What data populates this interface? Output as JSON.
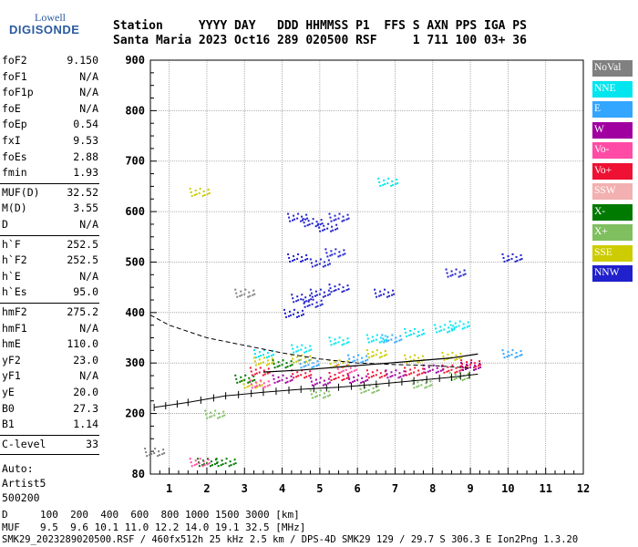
{
  "logo": {
    "top": "Lowell",
    "main": "DIGISONDE"
  },
  "header": {
    "row1": "Station     YYYY DAY   DDD HHMMSS P1  FFS S AXN PPS IGA PS",
    "row2": "Santa Maria 2023 Oct16 289 020500 RSF     1 711 100 03+ 36"
  },
  "params": {
    "group1": [
      {
        "name": "foF2",
        "value": "9.150"
      },
      {
        "name": "foF1",
        "value": "N/A"
      },
      {
        "name": "foF1p",
        "value": "N/A"
      },
      {
        "name": "foE",
        "value": "N/A"
      },
      {
        "name": "foEp",
        "value": "0.54"
      },
      {
        "name": "fxI",
        "value": "9.53"
      },
      {
        "name": "foEs",
        "value": "2.88"
      },
      {
        "name": "fmin",
        "value": "1.93"
      }
    ],
    "group2": [
      {
        "name": "MUF(D)",
        "value": "32.52"
      },
      {
        "name": "M(D)",
        "value": "3.55"
      },
      {
        "name": "D",
        "value": "N/A"
      }
    ],
    "group3": [
      {
        "name": "h`F",
        "value": "252.5"
      },
      {
        "name": "h`F2",
        "value": "252.5"
      },
      {
        "name": "h`E",
        "value": "N/A"
      },
      {
        "name": "h`Es",
        "value": "95.0"
      }
    ],
    "group4": [
      {
        "name": "hmF2",
        "value": "275.2"
      },
      {
        "name": "hmF1",
        "value": "N/A"
      },
      {
        "name": "hmE",
        "value": "110.0"
      },
      {
        "name": "yF2",
        "value": "23.0"
      },
      {
        "name": "yF1",
        "value": "N/A"
      },
      {
        "name": "yE",
        "value": "20.0"
      },
      {
        "name": "B0",
        "value": "27.3"
      },
      {
        "name": "B1",
        "value": "1.14"
      }
    ],
    "group5": [
      {
        "name": "C-level",
        "value": "33"
      }
    ],
    "auto": [
      "Auto:",
      "Artist5",
      "500200"
    ]
  },
  "legend": [
    {
      "label": "NoVal",
      "color": "#808080"
    },
    {
      "label": "NNE",
      "color": "#00e5ee"
    },
    {
      "label": "E",
      "color": "#33a6ff"
    },
    {
      "label": "W",
      "color": "#a000a0"
    },
    {
      "label": "Vo-",
      "color": "#ff4ba5"
    },
    {
      "label": "Vo+",
      "color": "#ee1133"
    },
    {
      "label": "SSW",
      "color": "#f2b0b0"
    },
    {
      "label": "X-",
      "color": "#007a00"
    },
    {
      "label": "X+",
      "color": "#7fbf5f"
    },
    {
      "label": "SSE",
      "color": "#cccc00"
    },
    {
      "label": "NNW",
      "color": "#2020cc"
    }
  ],
  "chart_data": {
    "type": "scatter",
    "title": "",
    "xlabel": "",
    "ylabel": "",
    "xlim": [
      0.5,
      12
    ],
    "ylim": [
      80,
      900
    ],
    "x_ticks": [
      "1",
      "2",
      "3",
      "4",
      "5",
      "6",
      "7",
      "8",
      "9",
      "10",
      "11",
      "12"
    ],
    "y_ticks": [
      "80",
      "200",
      "300",
      "400",
      "500",
      "600",
      "700",
      "800",
      "900"
    ],
    "grid": true,
    "series": [
      {
        "color": "#2020cc",
        "points": [
          [
            4.4,
            590
          ],
          [
            4.8,
            580
          ],
          [
            5.2,
            570
          ],
          [
            5.5,
            590
          ],
          [
            4.4,
            510
          ],
          [
            5.0,
            500
          ],
          [
            5.4,
            520
          ],
          [
            4.5,
            430
          ],
          [
            5.0,
            440
          ],
          [
            5.5,
            450
          ],
          [
            4.8,
            420
          ],
          [
            6.7,
            440
          ],
          [
            10.1,
            510
          ],
          [
            8.6,
            480
          ],
          [
            4.3,
            400
          ]
        ]
      },
      {
        "color": "#00e5ee",
        "points": [
          [
            3.5,
            320
          ],
          [
            4.5,
            330
          ],
          [
            5.5,
            345
          ],
          [
            6.5,
            350
          ],
          [
            7.5,
            362
          ],
          [
            8.3,
            370
          ],
          [
            8.7,
            377
          ],
          [
            6.8,
            660
          ]
        ]
      },
      {
        "color": "#cccc00",
        "points": [
          [
            3.5,
            305
          ],
          [
            4.5,
            310
          ],
          [
            5.5,
            300
          ],
          [
            6.5,
            320
          ],
          [
            7.5,
            310
          ],
          [
            8.5,
            315
          ],
          [
            1.8,
            640
          ],
          [
            3.2,
            260
          ]
        ]
      },
      {
        "color": "#ee1133",
        "points": [
          [
            3.4,
            285
          ],
          [
            4.5,
            280
          ],
          [
            5.5,
            275
          ],
          [
            6.5,
            280
          ],
          [
            7.5,
            285
          ],
          [
            8.5,
            290
          ],
          [
            9.0,
            300
          ]
        ]
      },
      {
        "color": "#a000a0",
        "points": [
          [
            4.0,
            270
          ],
          [
            5.0,
            265
          ],
          [
            6.0,
            270
          ],
          [
            7.0,
            280
          ],
          [
            8.0,
            290
          ],
          [
            9.0,
            295
          ]
        ]
      },
      {
        "color": "#7fbf5f",
        "points": [
          [
            2.2,
            200
          ],
          [
            5.0,
            240
          ],
          [
            6.3,
            250
          ],
          [
            7.7,
            260
          ],
          [
            8.7,
            275
          ]
        ]
      },
      {
        "color": "#007a00",
        "points": [
          [
            2.0,
            105
          ],
          [
            2.5,
            105
          ],
          [
            3.0,
            270
          ],
          [
            4.0,
            300
          ]
        ]
      },
      {
        "color": "#33a6ff",
        "points": [
          [
            4.7,
            300
          ],
          [
            6.0,
            310
          ],
          [
            6.9,
            350
          ],
          [
            10.1,
            320
          ]
        ]
      },
      {
        "color": "#ff4ba5",
        "points": [
          [
            1.8,
            105
          ],
          [
            3.4,
            260
          ],
          [
            5.7,
            290
          ]
        ]
      },
      {
        "color": "#808080",
        "points": [
          [
            0.6,
            125
          ],
          [
            3.0,
            440
          ]
        ]
      }
    ],
    "trace_x_mode": [
      [
        0.6,
        212
      ],
      [
        1.5,
        222
      ],
      [
        2.5,
        235
      ],
      [
        3.5,
        242
      ],
      [
        4.5,
        248
      ],
      [
        5.5,
        252
      ],
      [
        6.5,
        258
      ],
      [
        7.5,
        265
      ],
      [
        8.5,
        272
      ],
      [
        9.2,
        278
      ]
    ],
    "trace_o_mode": [
      [
        3.5,
        282
      ],
      [
        4.5,
        286
      ],
      [
        5.5,
        292
      ],
      [
        6.5,
        298
      ],
      [
        7.5,
        304
      ],
      [
        8.5,
        310
      ],
      [
        9.2,
        318
      ]
    ],
    "profile_dashed": [
      [
        0.5,
        395
      ],
      [
        1,
        375
      ],
      [
        2,
        350
      ],
      [
        3,
        335
      ],
      [
        4,
        320
      ],
      [
        5,
        308
      ],
      [
        6,
        300
      ],
      [
        7,
        297
      ],
      [
        8,
        295
      ],
      [
        9,
        290
      ]
    ],
    "bottom_scales": {
      "D_label": "D",
      "D_values": "100  200  400  600  800 1000 1500 3000 [km]",
      "MUF_label": "MUF",
      "MUF_values": "9.5  9.6 10.1 11.0 12.2 14.0 19.1 32.5 [MHz]"
    }
  },
  "footer": "SMK29_2023289020500.RSF / 460fx512h 25 kHz 2.5 km / DPS-4D SMK29 129 / 29.7 S 306.3 E Ion2Png 1.3.20"
}
